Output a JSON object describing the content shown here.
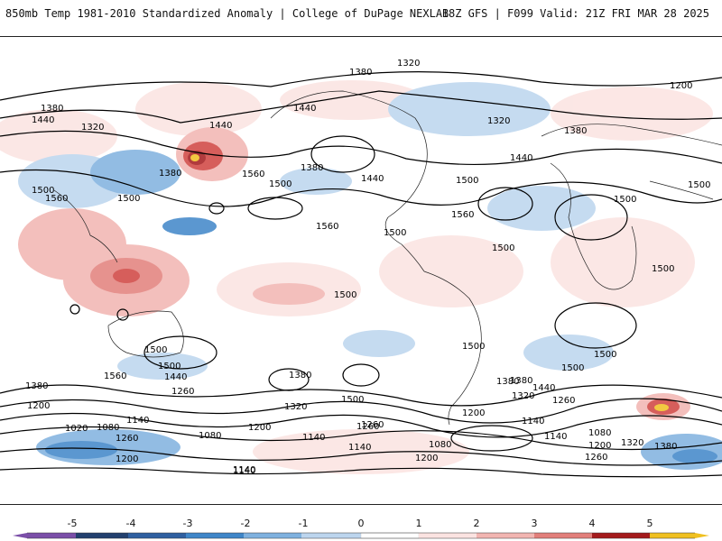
{
  "header": {
    "title": "850mb Temp 1981-2010 Standardized Anomaly | College of DuPage NEXLAB",
    "run_info": "18Z GFS | F099 Valid: 21Z FRI MAR 28 2025"
  },
  "colorbar": {
    "labels": [
      "-5",
      "-4",
      "-3",
      "-2",
      "-1",
      "0",
      "1",
      "2",
      "3",
      "4",
      "5"
    ],
    "colors": [
      "#7b4fa8",
      "#22406e",
      "#2f5fa0",
      "#3f86c8",
      "#7fb1df",
      "#bcd5ee",
      "#e8f0f9",
      "#fbe3e1",
      "#f2b5b1",
      "#e27f7b",
      "#d0433f",
      "#a41a1c",
      "#6e0a0e",
      "#f0c020"
    ]
  },
  "contour_labels": [
    "1320",
    "1380",
    "1440",
    "1200",
    "1320",
    "1380",
    "1440",
    "1500",
    "1560",
    "1380",
    "1500",
    "1440",
    "1440",
    "1380",
    "1500",
    "1500",
    "1560",
    "1560",
    "1500",
    "1500",
    "1500",
    "1440",
    "1380",
    "1320",
    "1200",
    "1380",
    "1260",
    "1500",
    "1380",
    "1440",
    "1260",
    "1500",
    "1560",
    "1500",
    "1500",
    "1500",
    "1320",
    "1380",
    "1200",
    "1020",
    "1080",
    "1140",
    "1260",
    "1080",
    "1200",
    "1140",
    "1140",
    "1260",
    "1500",
    "1440",
    "1380",
    "1320",
    "1260",
    "1200",
    "1140",
    "1080",
    "1200",
    "1320",
    "1380",
    "1140",
    "1260",
    "1140",
    "1080",
    "1200",
    "1140",
    "1500",
    "1560",
    "1500",
    "1500"
  ]
}
